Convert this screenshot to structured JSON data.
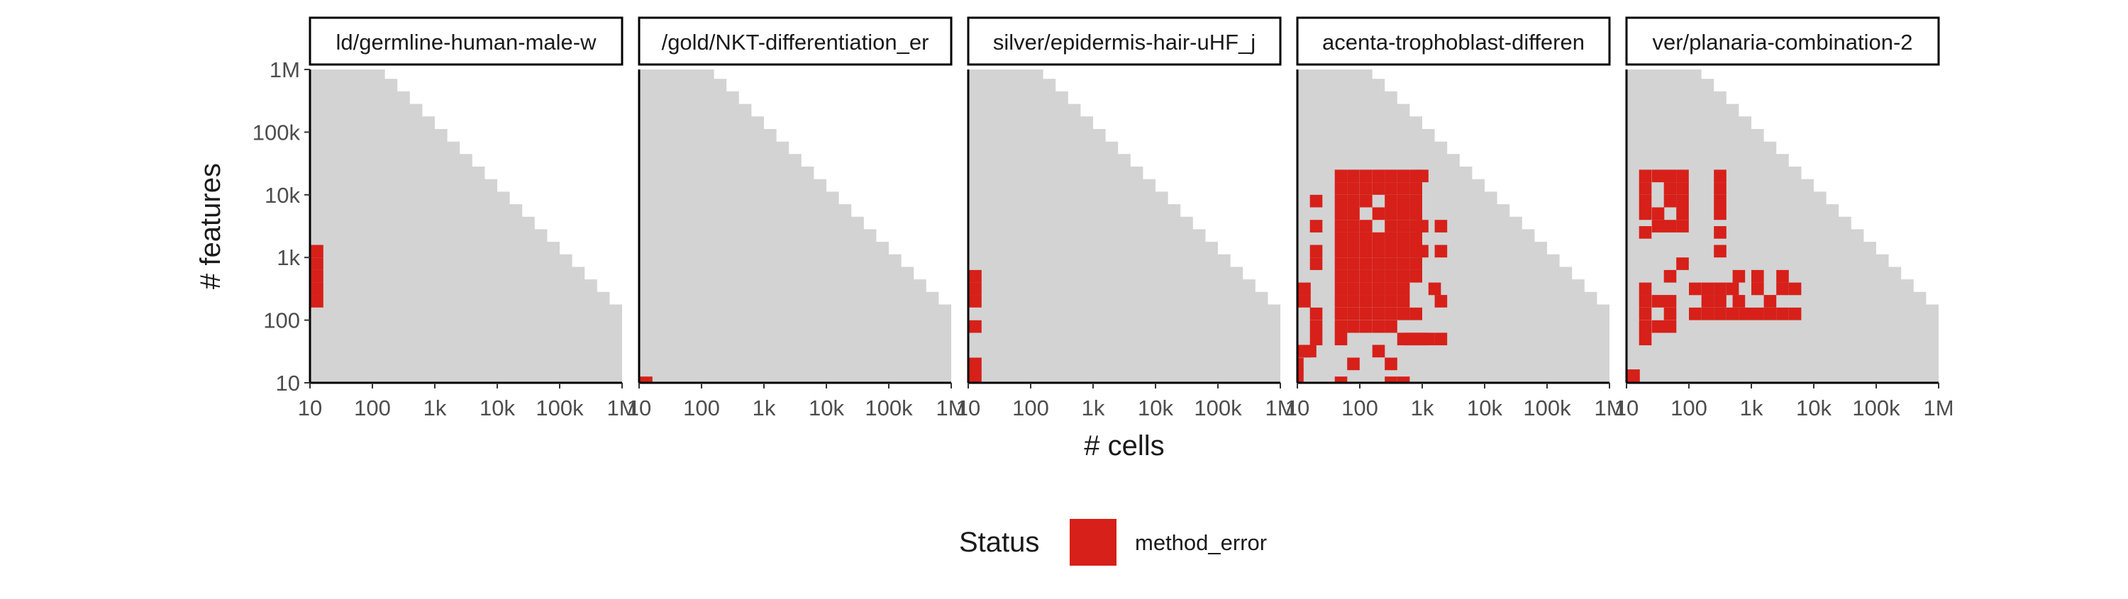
{
  "chart_data": {
    "type": "heatmap",
    "xlabel": "# cells",
    "ylabel": "# features",
    "x_scale": "log10",
    "y_scale": "log10",
    "xlim": [
      10,
      1000000
    ],
    "ylim": [
      10,
      1000000
    ],
    "x_ticks": [
      10,
      100,
      1000,
      10000,
      100000,
      1000000
    ],
    "x_tick_labels": [
      "10",
      "100",
      "1k",
      "10k",
      "100k",
      "1M"
    ],
    "y_ticks": [
      10,
      100,
      1000,
      10000,
      100000,
      1000000
    ],
    "y_tick_labels": [
      "10",
      "100",
      "1k",
      "10k",
      "100k",
      "1M"
    ],
    "grid": false,
    "background_color": "#d3d3d3",
    "legend": {
      "title": "Status",
      "position": "bottom",
      "entries": [
        {
          "label": "method_error",
          "color": "#d62019"
        }
      ]
    },
    "panels": [
      {
        "title": "ld/germline-human-male-w",
        "method_error": [
          [
            13,
            200
          ],
          [
            13,
            316
          ],
          [
            13,
            501
          ],
          [
            13,
            794
          ],
          [
            13,
            1259
          ]
        ]
      },
      {
        "title": "/gold/NKT-differentiation_er",
        "method_error": [
          [
            13,
            10
          ]
        ]
      },
      {
        "title": "silver/epidermis-hair-uHF_j",
        "method_error": [
          [
            13,
            13
          ],
          [
            13,
            20
          ],
          [
            13,
            79
          ],
          [
            13,
            200
          ],
          [
            13,
            316
          ],
          [
            13,
            501
          ]
        ]
      },
      {
        "title": "acenta-trophoblast-differen",
        "method_error": [
          [
            10,
            13
          ],
          [
            10,
            20
          ],
          [
            13,
            32
          ],
          [
            16,
            32
          ],
          [
            20,
            50
          ],
          [
            20,
            79
          ],
          [
            20,
            126
          ],
          [
            13,
            200
          ],
          [
            13,
            316
          ],
          [
            20,
            794
          ],
          [
            20,
            1259
          ],
          [
            20,
            3162
          ],
          [
            20,
            7943
          ],
          [
            50,
            10
          ],
          [
            50,
            50
          ],
          [
            79,
            20
          ],
          [
            200,
            32
          ],
          [
            316,
            10
          ],
          [
            501,
            10
          ],
          [
            316,
            20
          ],
          [
            501,
            50
          ],
          [
            631,
            50
          ],
          [
            794,
            50
          ],
          [
            1000,
            50
          ],
          [
            1259,
            50
          ],
          [
            1995,
            50
          ],
          [
            1995,
            200
          ],
          [
            1585,
            316
          ],
          [
            1995,
            1259
          ],
          [
            1995,
            3162
          ],
          [
            50,
            79
          ],
          [
            79,
            79
          ],
          [
            126,
            79
          ],
          [
            200,
            79
          ],
          [
            316,
            79
          ],
          [
            50,
            126
          ],
          [
            79,
            126
          ],
          [
            126,
            126
          ],
          [
            200,
            126
          ],
          [
            316,
            126
          ],
          [
            501,
            126
          ],
          [
            794,
            126
          ],
          [
            50,
            200
          ],
          [
            79,
            200
          ],
          [
            126,
            200
          ],
          [
            200,
            200
          ],
          [
            316,
            200
          ],
          [
            501,
            200
          ],
          [
            50,
            316
          ],
          [
            79,
            316
          ],
          [
            126,
            316
          ],
          [
            200,
            316
          ],
          [
            316,
            316
          ],
          [
            501,
            316
          ],
          [
            50,
            501
          ],
          [
            79,
            501
          ],
          [
            126,
            501
          ],
          [
            200,
            501
          ],
          [
            316,
            501
          ],
          [
            501,
            501
          ],
          [
            794,
            501
          ],
          [
            50,
            794
          ],
          [
            79,
            794
          ],
          [
            126,
            794
          ],
          [
            200,
            794
          ],
          [
            316,
            794
          ],
          [
            501,
            794
          ],
          [
            794,
            794
          ],
          [
            50,
            1259
          ],
          [
            79,
            1259
          ],
          [
            126,
            1259
          ],
          [
            200,
            1259
          ],
          [
            316,
            1259
          ],
          [
            501,
            1259
          ],
          [
            794,
            1259
          ],
          [
            1000,
            1259
          ],
          [
            50,
            1995
          ],
          [
            79,
            1995
          ],
          [
            126,
            1995
          ],
          [
            200,
            1995
          ],
          [
            316,
            1995
          ],
          [
            501,
            1995
          ],
          [
            794,
            1995
          ],
          [
            50,
            3162
          ],
          [
            79,
            3162
          ],
          [
            126,
            3162
          ],
          [
            316,
            3162
          ],
          [
            501,
            3162
          ],
          [
            794,
            3162
          ],
          [
            1000,
            3162
          ],
          [
            50,
            5012
          ],
          [
            79,
            5012
          ],
          [
            200,
            5012
          ],
          [
            316,
            5012
          ],
          [
            501,
            5012
          ],
          [
            794,
            5012
          ],
          [
            50,
            7943
          ],
          [
            79,
            7943
          ],
          [
            126,
            7943
          ],
          [
            316,
            7943
          ],
          [
            501,
            7943
          ],
          [
            794,
            7943
          ],
          [
            50,
            12589
          ],
          [
            79,
            12589
          ],
          [
            126,
            12589
          ],
          [
            200,
            12589
          ],
          [
            316,
            12589
          ],
          [
            501,
            12589
          ],
          [
            794,
            12589
          ],
          [
            50,
            19953
          ],
          [
            79,
            19953
          ],
          [
            126,
            19953
          ],
          [
            200,
            19953
          ],
          [
            316,
            19953
          ],
          [
            501,
            19953
          ],
          [
            794,
            19953
          ],
          [
            1000,
            19953
          ]
        ]
      },
      {
        "title": "ver/planaria-combination-2",
        "method_error": [
          [
            13,
            13
          ],
          [
            20,
            50
          ],
          [
            20,
            79
          ],
          [
            20,
            126
          ],
          [
            20,
            200
          ],
          [
            20,
            316
          ],
          [
            32,
            200
          ],
          [
            20,
            2512
          ],
          [
            20,
            5012
          ],
          [
            20,
            7943
          ],
          [
            20,
            12589
          ],
          [
            20,
            19953
          ],
          [
            32,
            19953
          ],
          [
            50,
            19953
          ],
          [
            79,
            19953
          ],
          [
            50,
            12589
          ],
          [
            50,
            7943
          ],
          [
            79,
            12589
          ],
          [
            79,
            7943
          ],
          [
            79,
            5012
          ],
          [
            79,
            3162
          ],
          [
            50,
            3162
          ],
          [
            32,
            3162
          ],
          [
            32,
            5012
          ],
          [
            32,
            79
          ],
          [
            50,
            79
          ],
          [
            50,
            126
          ],
          [
            50,
            200
          ],
          [
            50,
            501
          ],
          [
            79,
            794
          ],
          [
            316,
            1259
          ],
          [
            316,
            2512
          ],
          [
            316,
            5012
          ],
          [
            316,
            7943
          ],
          [
            316,
            12589
          ],
          [
            316,
            19953
          ],
          [
            126,
            126
          ],
          [
            200,
            126
          ],
          [
            316,
            126
          ],
          [
            501,
            126
          ],
          [
            794,
            126
          ],
          [
            1259,
            126
          ],
          [
            1995,
            126
          ],
          [
            3162,
            126
          ],
          [
            5012,
            126
          ],
          [
            200,
            200
          ],
          [
            316,
            200
          ],
          [
            631,
            200
          ],
          [
            1995,
            200
          ],
          [
            126,
            316
          ],
          [
            200,
            316
          ],
          [
            316,
            316
          ],
          [
            501,
            316
          ],
          [
            1259,
            316
          ],
          [
            3162,
            316
          ],
          [
            5012,
            316
          ],
          [
            631,
            501
          ],
          [
            1259,
            501
          ],
          [
            3162,
            501
          ]
        ]
      }
    ]
  }
}
